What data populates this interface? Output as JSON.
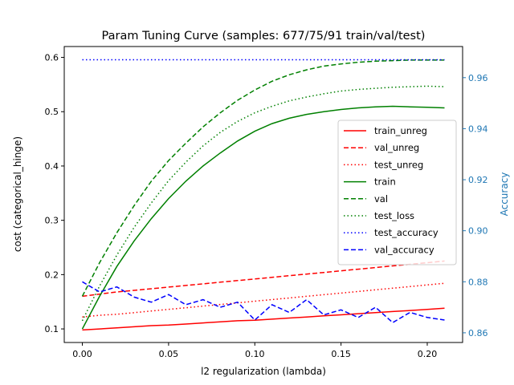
{
  "chart_data": {
    "type": "line",
    "title": "Param Tuning Curve (samples: 677/75/91 train/val/test)",
    "xlabel": "l2 regularization (lambda)",
    "ylabel_left": "cost (categorical_hinge)",
    "ylabel_right": "Accuracy",
    "xlim": [
      -0.0105,
      0.2205
    ],
    "ylim_left": [
      0.075,
      0.62
    ],
    "ylim_right": [
      0.8562,
      0.9722
    ],
    "x_ticks": [
      0.0,
      0.05,
      0.1,
      0.15,
      0.2
    ],
    "x_tick_labels": [
      "0.00",
      "0.05",
      "0.10",
      "0.15",
      "0.20"
    ],
    "y_left_ticks": [
      0.1,
      0.2,
      0.3,
      0.4,
      0.5,
      0.6
    ],
    "y_left_tick_labels": [
      "0.1",
      "0.2",
      "0.3",
      "0.4",
      "0.5",
      "0.6"
    ],
    "y_right_ticks": [
      0.86,
      0.88,
      0.9,
      0.92,
      0.94,
      0.96
    ],
    "y_right_tick_labels": [
      "0.86",
      "0.88",
      "0.90",
      "0.92",
      "0.94",
      "0.96"
    ],
    "right_axis_color": "#1f77b4",
    "grid": false,
    "legend_position": "center-right",
    "x": [
      0.0,
      0.01,
      0.02,
      0.03,
      0.04,
      0.05,
      0.06,
      0.07,
      0.08,
      0.09,
      0.1,
      0.11,
      0.12,
      0.13,
      0.14,
      0.15,
      0.16,
      0.17,
      0.18,
      0.19,
      0.2,
      0.21
    ],
    "series": [
      {
        "name": "train_unreg",
        "axis": "left",
        "color": "#ff0000",
        "style": "solid",
        "values": [
          0.098,
          0.1,
          0.102,
          0.104,
          0.106,
          0.107,
          0.109,
          0.111,
          0.113,
          0.115,
          0.116,
          0.118,
          0.12,
          0.122,
          0.124,
          0.126,
          0.128,
          0.13,
          0.132,
          0.134,
          0.136,
          0.138
        ]
      },
      {
        "name": "val_unreg",
        "axis": "left",
        "color": "#ff0000",
        "style": "dashed",
        "values": [
          0.16,
          0.164,
          0.168,
          0.171,
          0.174,
          0.177,
          0.18,
          0.183,
          0.186,
          0.189,
          0.192,
          0.195,
          0.198,
          0.201,
          0.204,
          0.207,
          0.21,
          0.213,
          0.216,
          0.219,
          0.222,
          0.225
        ]
      },
      {
        "name": "test_unreg",
        "axis": "left",
        "color": "#ff0000",
        "style": "dotted",
        "values": [
          0.122,
          0.125,
          0.127,
          0.13,
          0.133,
          0.136,
          0.139,
          0.142,
          0.145,
          0.148,
          0.151,
          0.154,
          0.157,
          0.16,
          0.163,
          0.166,
          0.169,
          0.172,
          0.175,
          0.178,
          0.181,
          0.184
        ]
      },
      {
        "name": "train",
        "axis": "left",
        "color": "#008000",
        "style": "solid",
        "values": [
          0.1,
          0.16,
          0.215,
          0.262,
          0.303,
          0.34,
          0.372,
          0.4,
          0.424,
          0.446,
          0.464,
          0.478,
          0.488,
          0.495,
          0.5,
          0.504,
          0.507,
          0.509,
          0.51,
          0.509,
          0.508,
          0.507
        ]
      },
      {
        "name": "val",
        "axis": "left",
        "color": "#008000",
        "style": "dashed",
        "values": [
          0.16,
          0.222,
          0.277,
          0.327,
          0.372,
          0.41,
          0.442,
          0.472,
          0.498,
          0.521,
          0.54,
          0.556,
          0.568,
          0.577,
          0.584,
          0.588,
          0.591,
          0.593,
          0.594,
          0.595,
          0.595,
          0.595
        ]
      },
      {
        "name": "test_loss",
        "axis": "left",
        "color": "#008000",
        "style": "dotted",
        "values": [
          0.115,
          0.179,
          0.236,
          0.287,
          0.332,
          0.373,
          0.407,
          0.437,
          0.462,
          0.482,
          0.498,
          0.51,
          0.52,
          0.527,
          0.533,
          0.538,
          0.541,
          0.543,
          0.545,
          0.546,
          0.547,
          0.546
        ]
      },
      {
        "name": "test_accuracy",
        "axis": "right",
        "color": "#0000ff",
        "style": "dotted",
        "values": [
          0.967,
          0.967,
          0.967,
          0.967,
          0.967,
          0.967,
          0.967,
          0.967,
          0.967,
          0.967,
          0.967,
          0.967,
          0.967,
          0.967,
          0.967,
          0.967,
          0.967,
          0.967,
          0.967,
          0.967,
          0.967,
          0.967
        ]
      },
      {
        "name": "val_accuracy",
        "axis": "right",
        "color": "#0000ff",
        "style": "dashed",
        "values": [
          0.88,
          0.876,
          0.878,
          0.874,
          0.872,
          0.875,
          0.871,
          0.873,
          0.87,
          0.872,
          0.865,
          0.871,
          0.868,
          0.873,
          0.867,
          0.869,
          0.866,
          0.87,
          0.864,
          0.868,
          0.866,
          0.865
        ]
      }
    ]
  }
}
